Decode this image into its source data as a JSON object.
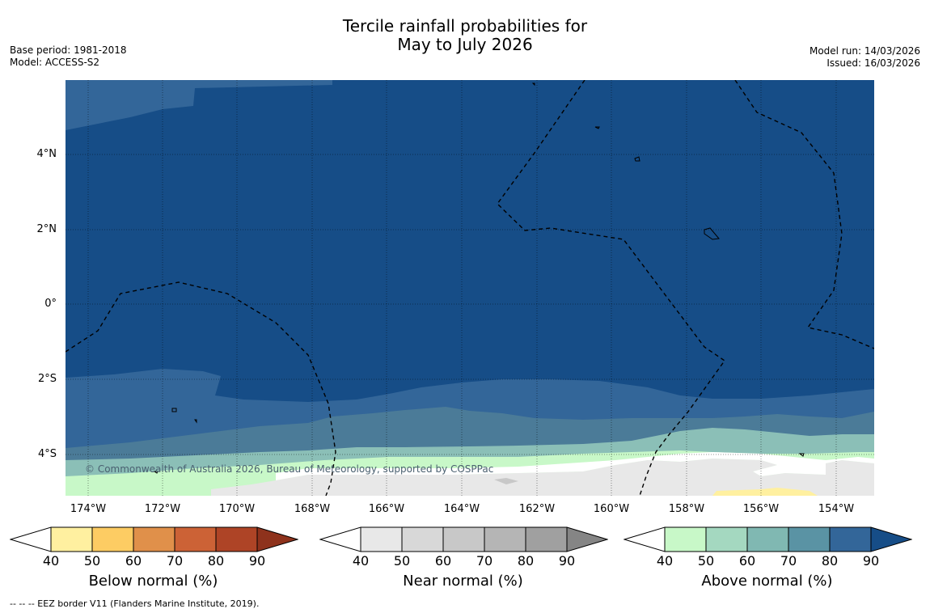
{
  "title_line1": "Tercile rainfall probabilities for",
  "title_line2": "May to July 2026",
  "left_meta": {
    "base_period": "Base period: 1981-2018",
    "model": "Model: ACCESS-S2"
  },
  "right_meta": {
    "model_run": "Model run: 14/03/2026",
    "issued": "Issued: 16/03/2026"
  },
  "copyright": "© Commonwealth of Australia 2026, Bureau of Meteorology, supported by COSPPac",
  "y_ticks": [
    "4°N",
    "2°N",
    "0°",
    "2°S",
    "4°S"
  ],
  "x_ticks": [
    "174°W",
    "172°W",
    "170°W",
    "168°W",
    "166°W",
    "164°W",
    "162°W",
    "160°W",
    "158°W",
    "156°W",
    "154°W"
  ],
  "colorbars": [
    {
      "title": "Below normal (%)",
      "ticks": [
        "40",
        "50",
        "60",
        "70",
        "80",
        "90"
      ],
      "colors": [
        "#fff0a0",
        "#fdcc63",
        "#e0904a",
        "#cc6236",
        "#ae4426"
      ],
      "extend_color": "#8e321c"
    },
    {
      "title": "Near normal (%)",
      "ticks": [
        "40",
        "50",
        "60",
        "70",
        "80",
        "90"
      ],
      "colors": [
        "#e8e8e8",
        "#d8d8d8",
        "#c8c8c8",
        "#b5b5b5",
        "#a0a0a0"
      ],
      "extend_color": "#858585"
    },
    {
      "title": "Above normal (%)",
      "ticks": [
        "40",
        "50",
        "60",
        "70",
        "80",
        "90"
      ],
      "colors": [
        "#c8f8c8",
        "#a4d8c0",
        "#80b8b2",
        "#5a93a4",
        "#336699"
      ],
      "extend_color": "#164d87"
    }
  ],
  "footnote": "--  --  -- EEZ border V11 (Flanders Marine Institute, 2019).",
  "colors": {
    "deep_blue": "#164d87",
    "mid_blue": "#336699"
  }
}
